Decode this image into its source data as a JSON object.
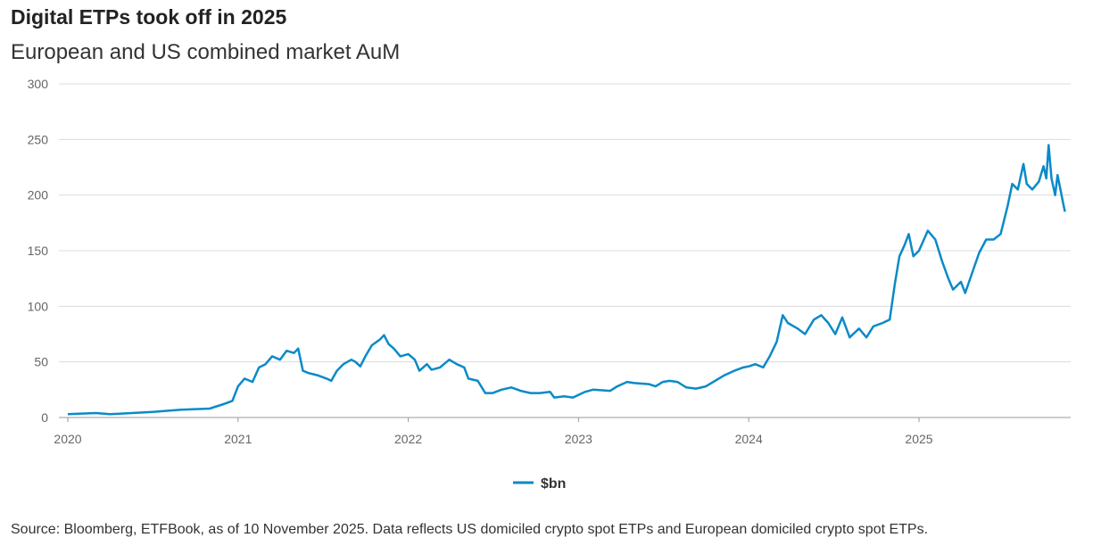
{
  "chart_data": {
    "type": "line",
    "title": "Digital ETPs took off in 2025",
    "subtitle": "European and US combined market AuM",
    "source": "Source: Bloomberg, ETFBook, as of 10 November 2025. Data reflects US domiciled crypto spot ETPs and European domiciled crypto spot ETPs.",
    "xlabel": "",
    "ylabel": "",
    "ylim": [
      0,
      300
    ],
    "yticks": [
      "0",
      "50",
      "100",
      "150",
      "200",
      "250",
      "300"
    ],
    "xticks": [
      "2020",
      "2021",
      "2022",
      "2023",
      "2024",
      "2025"
    ],
    "grid": "horizontal",
    "legend_position": "bottom-center",
    "color": "#0a8ac8",
    "series": [
      {
        "name": "$bn",
        "points": [
          [
            "2020-01-01",
            3
          ],
          [
            "2020-03-01",
            4
          ],
          [
            "2020-04-01",
            3
          ],
          [
            "2020-07-01",
            5
          ],
          [
            "2020-09-01",
            7
          ],
          [
            "2020-11-01",
            8
          ],
          [
            "2020-12-01",
            12
          ],
          [
            "2020-12-20",
            15
          ],
          [
            "2021-01-01",
            28
          ],
          [
            "2021-01-15",
            35
          ],
          [
            "2021-02-01",
            32
          ],
          [
            "2021-02-15",
            45
          ],
          [
            "2021-03-01",
            48
          ],
          [
            "2021-03-15",
            55
          ],
          [
            "2021-04-01",
            52
          ],
          [
            "2021-04-15",
            60
          ],
          [
            "2021-05-01",
            58
          ],
          [
            "2021-05-10",
            62
          ],
          [
            "2021-05-20",
            42
          ],
          [
            "2021-06-01",
            40
          ],
          [
            "2021-06-20",
            38
          ],
          [
            "2021-07-10",
            35
          ],
          [
            "2021-07-20",
            33
          ],
          [
            "2021-08-01",
            42
          ],
          [
            "2021-08-15",
            48
          ],
          [
            "2021-09-01",
            52
          ],
          [
            "2021-09-10",
            50
          ],
          [
            "2021-09-20",
            46
          ],
          [
            "2021-10-01",
            55
          ],
          [
            "2021-10-15",
            65
          ],
          [
            "2021-11-01",
            70
          ],
          [
            "2021-11-10",
            74
          ],
          [
            "2021-11-20",
            66
          ],
          [
            "2021-12-01",
            62
          ],
          [
            "2021-12-15",
            55
          ],
          [
            "2022-01-01",
            57
          ],
          [
            "2022-01-15",
            52
          ],
          [
            "2022-01-25",
            42
          ],
          [
            "2022-02-10",
            48
          ],
          [
            "2022-02-20",
            43
          ],
          [
            "2022-03-10",
            45
          ],
          [
            "2022-03-30",
            52
          ],
          [
            "2022-04-15",
            48
          ],
          [
            "2022-05-01",
            45
          ],
          [
            "2022-05-10",
            35
          ],
          [
            "2022-05-30",
            33
          ],
          [
            "2022-06-15",
            22
          ],
          [
            "2022-07-01",
            22
          ],
          [
            "2022-07-20",
            25
          ],
          [
            "2022-08-10",
            27
          ],
          [
            "2022-08-30",
            24
          ],
          [
            "2022-09-20",
            22
          ],
          [
            "2022-10-10",
            22
          ],
          [
            "2022-11-01",
            23
          ],
          [
            "2022-11-10",
            18
          ],
          [
            "2022-12-01",
            19
          ],
          [
            "2022-12-20",
            18
          ],
          [
            "2023-01-15",
            23
          ],
          [
            "2023-02-01",
            25
          ],
          [
            "2023-03-10",
            24
          ],
          [
            "2023-03-25",
            28
          ],
          [
            "2023-04-15",
            32
          ],
          [
            "2023-05-01",
            31
          ],
          [
            "2023-06-01",
            30
          ],
          [
            "2023-06-15",
            28
          ],
          [
            "2023-07-01",
            32
          ],
          [
            "2023-07-15",
            33
          ],
          [
            "2023-08-01",
            32
          ],
          [
            "2023-08-20",
            27
          ],
          [
            "2023-09-10",
            26
          ],
          [
            "2023-10-01",
            28
          ],
          [
            "2023-10-25",
            34
          ],
          [
            "2023-11-10",
            38
          ],
          [
            "2023-12-01",
            42
          ],
          [
            "2023-12-20",
            45
          ],
          [
            "2024-01-01",
            46
          ],
          [
            "2024-01-15",
            48
          ],
          [
            "2024-02-01",
            45
          ],
          [
            "2024-02-15",
            55
          ],
          [
            "2024-03-01",
            68
          ],
          [
            "2024-03-14",
            92
          ],
          [
            "2024-03-25",
            85
          ],
          [
            "2024-04-15",
            80
          ],
          [
            "2024-05-01",
            75
          ],
          [
            "2024-05-20",
            88
          ],
          [
            "2024-06-05",
            92
          ],
          [
            "2024-06-20",
            85
          ],
          [
            "2024-07-05",
            75
          ],
          [
            "2024-07-20",
            90
          ],
          [
            "2024-08-05",
            72
          ],
          [
            "2024-08-25",
            80
          ],
          [
            "2024-09-10",
            72
          ],
          [
            "2024-09-25",
            82
          ],
          [
            "2024-10-15",
            85
          ],
          [
            "2024-10-30",
            88
          ],
          [
            "2024-11-10",
            120
          ],
          [
            "2024-11-20",
            145
          ],
          [
            "2024-12-01",
            155
          ],
          [
            "2024-12-10",
            165
          ],
          [
            "2024-12-20",
            145
          ],
          [
            "2025-01-01",
            150
          ],
          [
            "2025-01-20",
            168
          ],
          [
            "2025-02-05",
            160
          ],
          [
            "2025-02-20",
            140
          ],
          [
            "2025-03-05",
            125
          ],
          [
            "2025-03-15",
            115
          ],
          [
            "2025-04-01",
            122
          ],
          [
            "2025-04-10",
            112
          ],
          [
            "2025-04-25",
            130
          ],
          [
            "2025-05-10",
            148
          ],
          [
            "2025-05-25",
            160
          ],
          [
            "2025-06-10",
            160
          ],
          [
            "2025-06-25",
            165
          ],
          [
            "2025-07-10",
            190
          ],
          [
            "2025-07-20",
            210
          ],
          [
            "2025-08-01",
            205
          ],
          [
            "2025-08-13",
            228
          ],
          [
            "2025-08-20",
            210
          ],
          [
            "2025-09-01",
            205
          ],
          [
            "2025-09-15",
            212
          ],
          [
            "2025-09-25",
            226
          ],
          [
            "2025-10-01",
            215
          ],
          [
            "2025-10-06",
            245
          ],
          [
            "2025-10-12",
            215
          ],
          [
            "2025-10-20",
            200
          ],
          [
            "2025-10-25",
            218
          ],
          [
            "2025-11-05",
            195
          ],
          [
            "2025-11-10",
            185
          ]
        ]
      }
    ]
  }
}
